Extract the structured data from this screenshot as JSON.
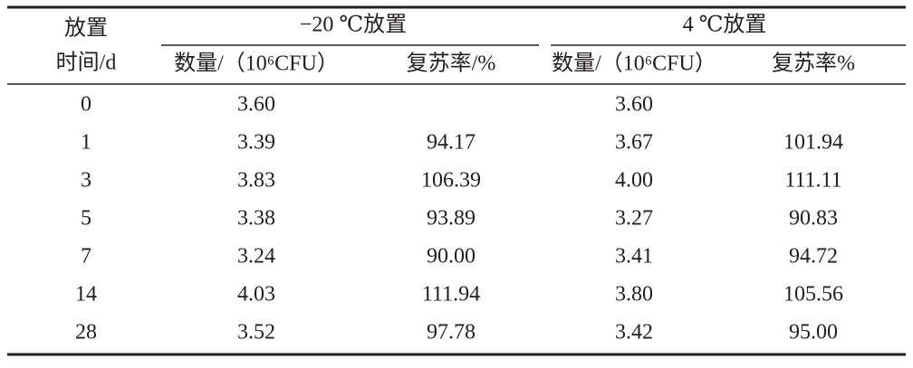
{
  "table": {
    "corner": [
      "放置",
      "时间/d"
    ],
    "groups": [
      "−20 ℃放置",
      "4 ℃放置"
    ],
    "subheaders": [
      "数量/（10⁶CFU）",
      "复苏率/%",
      "数量/（10⁶CFU）",
      "复苏率%"
    ],
    "rows": [
      [
        "0",
        "3.60",
        null,
        "3.60",
        null
      ],
      [
        "1",
        "3.39",
        "94.17",
        "3.67",
        "101.94"
      ],
      [
        "3",
        "3.83",
        "106.39",
        "4.00",
        "111.11"
      ],
      [
        "5",
        "3.38",
        "93.89",
        "3.27",
        "90.83"
      ],
      [
        "7",
        "3.24",
        "90.00",
        "3.41",
        "94.72"
      ],
      [
        "14",
        "4.03",
        "111.94",
        "3.80",
        "105.56"
      ],
      [
        "28",
        "3.52",
        "97.78",
        "3.42",
        "95.00"
      ]
    ]
  }
}
